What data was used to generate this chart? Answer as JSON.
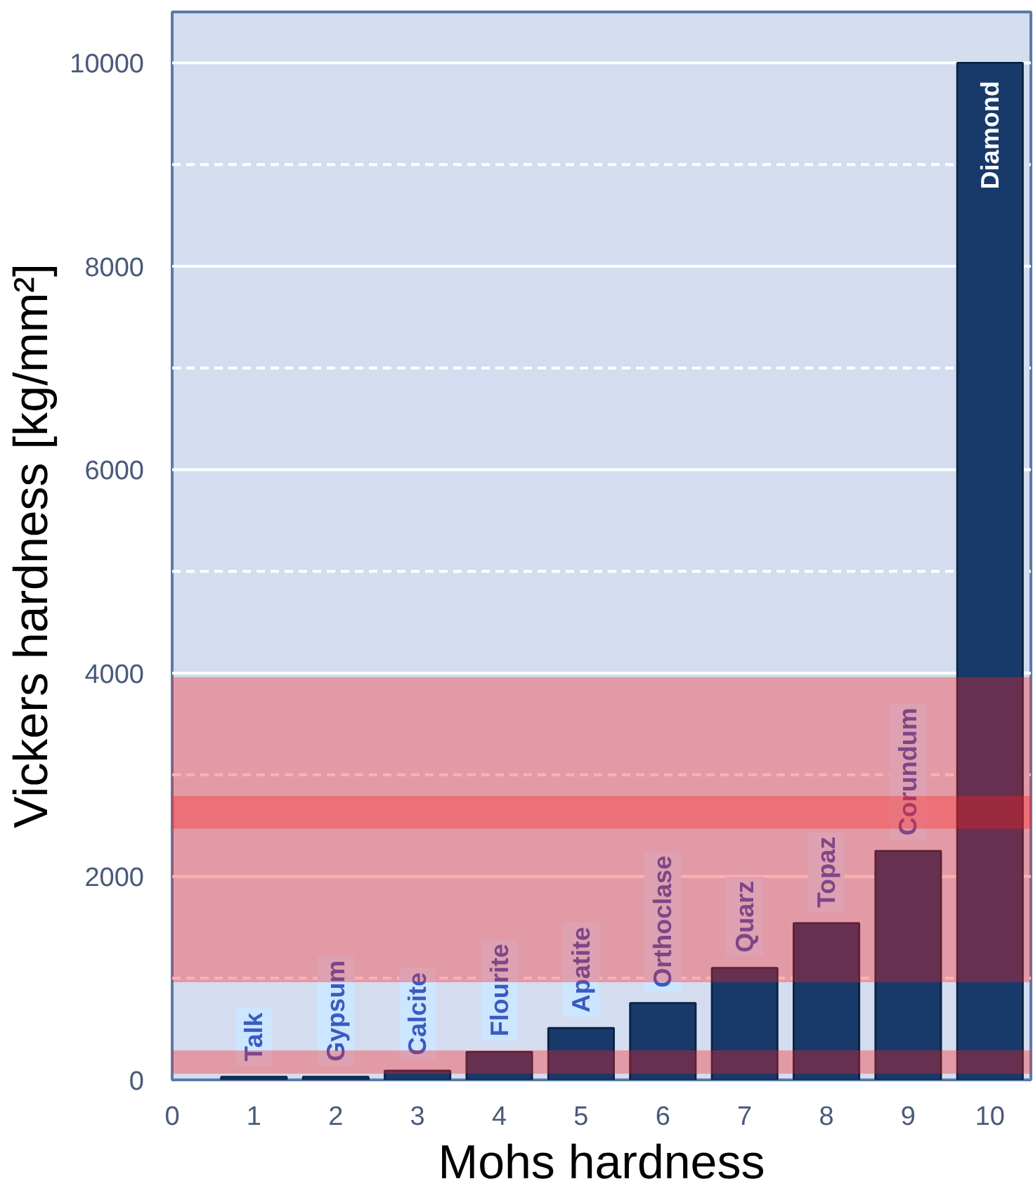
{
  "chart_data": {
    "type": "bar",
    "xlabel": "Mohs hardness",
    "ylabel": "Vickers hardness [kg/mm²]",
    "x": [
      1,
      2,
      3,
      4,
      5,
      6,
      7,
      8,
      9,
      10
    ],
    "values": [
      30,
      30,
      90,
      275,
      510,
      755,
      1100,
      1540,
      2250,
      10000
    ],
    "color": "#173a6b",
    "xlim": [
      0,
      10.5
    ],
    "xticks": [
      0,
      1,
      2,
      3,
      4,
      5,
      6,
      7,
      8,
      9,
      10
    ],
    "ylim": [
      0,
      10500
    ],
    "yticks": [
      0,
      {
        "value": 1000,
        "label": null
      },
      2000,
      {
        "value": 3000,
        "label": null
      },
      4000,
      {
        "value": 5000,
        "label": null
      },
      6000,
      {
        "value": 7000,
        "label": null
      },
      8000,
      {
        "value": 9000,
        "label": null
      },
      10000
    ],
    "grid": "y",
    "annotations": [
      {
        "text": "Talk",
        "x": 1,
        "y": 30
      },
      {
        "text": "Gypsum",
        "x": 2,
        "y": 30
      },
      {
        "text": "Calcite",
        "x": 3,
        "y": 90
      },
      {
        "text": "Flourite",
        "x": 4,
        "y": 275
      },
      {
        "text": "Apatite",
        "x": 5,
        "y": 510
      },
      {
        "text": "Orthoclase",
        "x": 6,
        "y": 755
      },
      {
        "text": "Quarz",
        "x": 7,
        "y": 1100
      },
      {
        "text": "Topaz",
        "x": 8,
        "y": 1540
      },
      {
        "text": "Corundum",
        "x": 9,
        "y": 2250
      },
      {
        "text": "Diamond",
        "x": 10,
        "y": 10000
      }
    ],
    "bands": [
      {
        "axis": "y",
        "from": 960,
        "to": 3960,
        "color": "#ff2020"
      },
      {
        "axis": "y",
        "from": 2470,
        "to": 2790,
        "color": "#ff2020"
      },
      {
        "axis": "y",
        "from": 60,
        "to": 290,
        "color": "#ff2020"
      }
    ]
  }
}
